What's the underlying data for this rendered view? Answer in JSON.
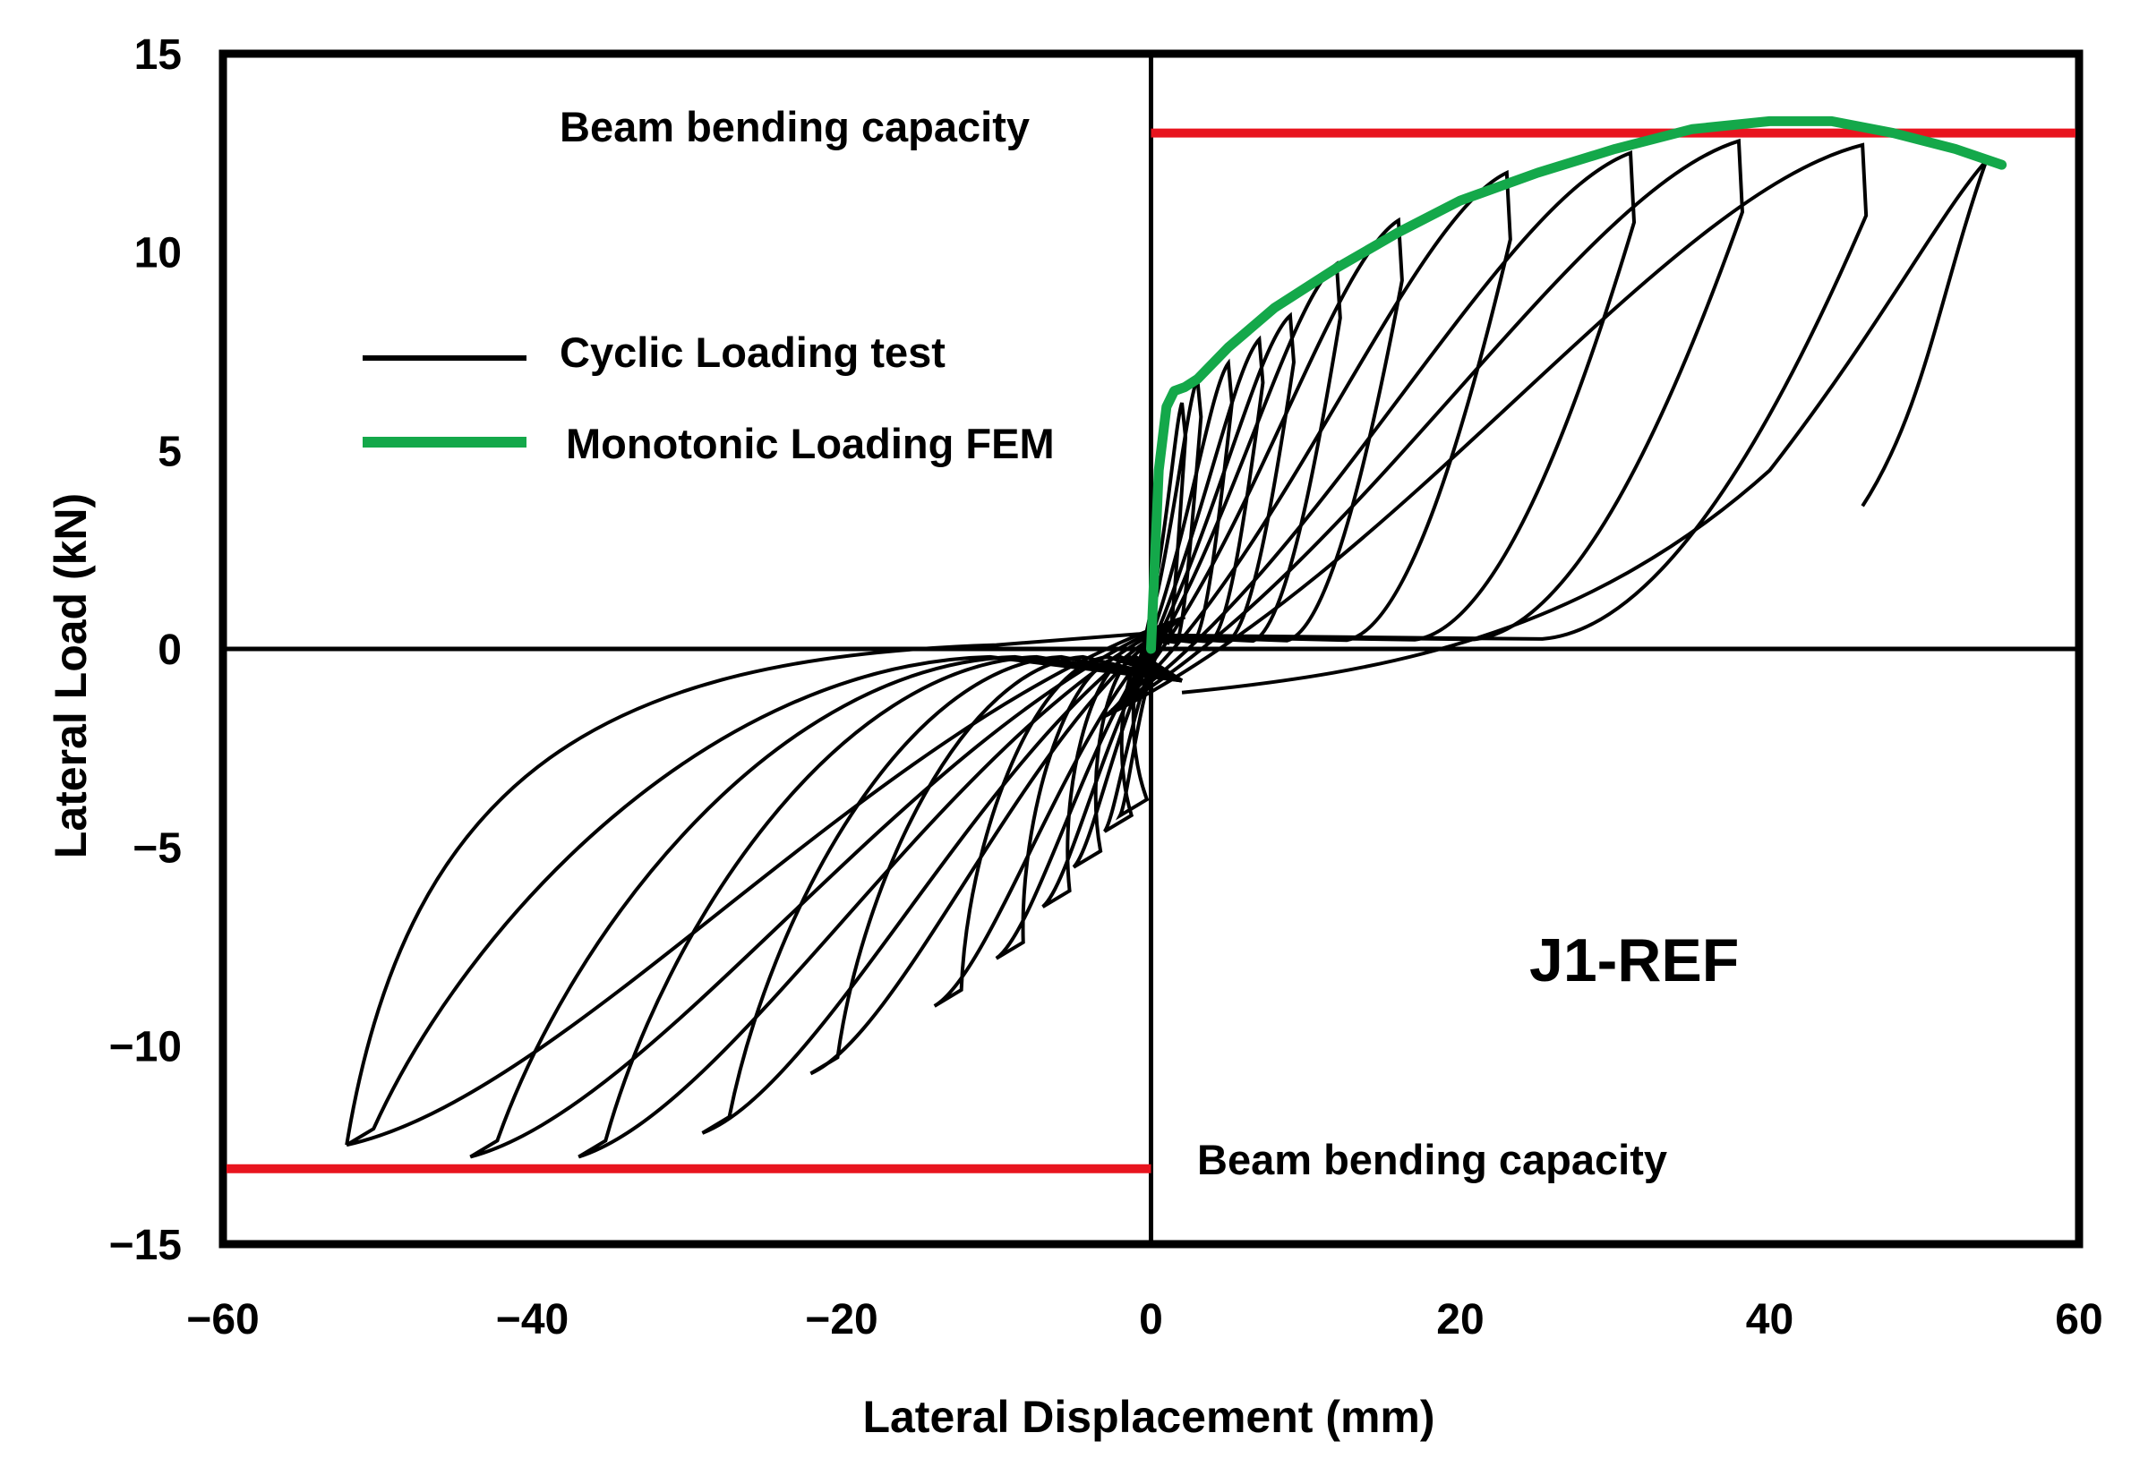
{
  "chart_data": {
    "type": "line",
    "title": "",
    "xlabel": "Lateral Displacement (mm)",
    "ylabel": "Lateral Load (kN)",
    "xlim": [
      -60,
      60
    ],
    "ylim": [
      -15,
      15
    ],
    "xticks": [
      -60,
      -40,
      -20,
      0,
      20,
      40,
      60
    ],
    "yticks": [
      -15,
      -10,
      -5,
      0,
      5,
      10,
      15
    ],
    "xtick_labels": [
      "−60",
      "−40",
      "−20",
      "0",
      "20",
      "40",
      "60"
    ],
    "ytick_labels": [
      "−15",
      "−10",
      "−5",
      "0",
      "5",
      "10",
      "15"
    ],
    "grid": false,
    "legend": [
      {
        "label": "Cyclic Loading test",
        "color": "#000000"
      },
      {
        "label": "Monotonic Loading FEM",
        "color": "#14a84a"
      }
    ],
    "specimen_label": "J1-REF",
    "capacity": {
      "label_top": "Beam bending capacity",
      "label_bottom": "Beam bending capacity",
      "positive_kN": 13.0,
      "negative_kN": -13.1,
      "color": "#e8141e"
    },
    "series": [
      {
        "name": "Monotonic Loading FEM",
        "color": "#14a84a",
        "x": [
          0,
          0.5,
          1.0,
          1.5,
          2.2,
          3,
          5,
          8,
          12,
          16,
          20,
          25,
          30,
          35,
          40,
          44,
          48,
          52,
          55
        ],
        "y": [
          0,
          4.5,
          6.1,
          6.5,
          6.6,
          6.8,
          7.6,
          8.6,
          9.6,
          10.5,
          11.3,
          12.0,
          12.6,
          13.1,
          13.3,
          13.3,
          13.0,
          12.6,
          12.2
        ]
      }
    ],
    "cyclic_loops": {
      "name": "Cyclic Loading test",
      "color": "#000000",
      "peaks_positive": [
        [
          2,
          6.2
        ],
        [
          3,
          6.8
        ],
        [
          5,
          7.2
        ],
        [
          7,
          7.8
        ],
        [
          9,
          8.4
        ],
        [
          12,
          9.7
        ],
        [
          16,
          10.8
        ],
        [
          23,
          12.0
        ],
        [
          31,
          12.5
        ],
        [
          38,
          12.8
        ],
        [
          46,
          12.7
        ],
        [
          54,
          12.3
        ]
      ],
      "peaks_negative": [
        [
          -2,
          -4.2
        ],
        [
          -3,
          -4.6
        ],
        [
          -5,
          -5.5
        ],
        [
          -7,
          -6.5
        ],
        [
          -10,
          -7.8
        ],
        [
          -14,
          -9.0
        ],
        [
          -22,
          -10.7
        ],
        [
          -29,
          -12.2
        ],
        [
          -37,
          -12.8
        ],
        [
          -44,
          -12.8
        ],
        [
          -52,
          -12.5
        ]
      ],
      "final_unload": [
        [
          54,
          12.3
        ],
        [
          51,
          7.0
        ],
        [
          46,
          3.6
        ]
      ]
    }
  }
}
